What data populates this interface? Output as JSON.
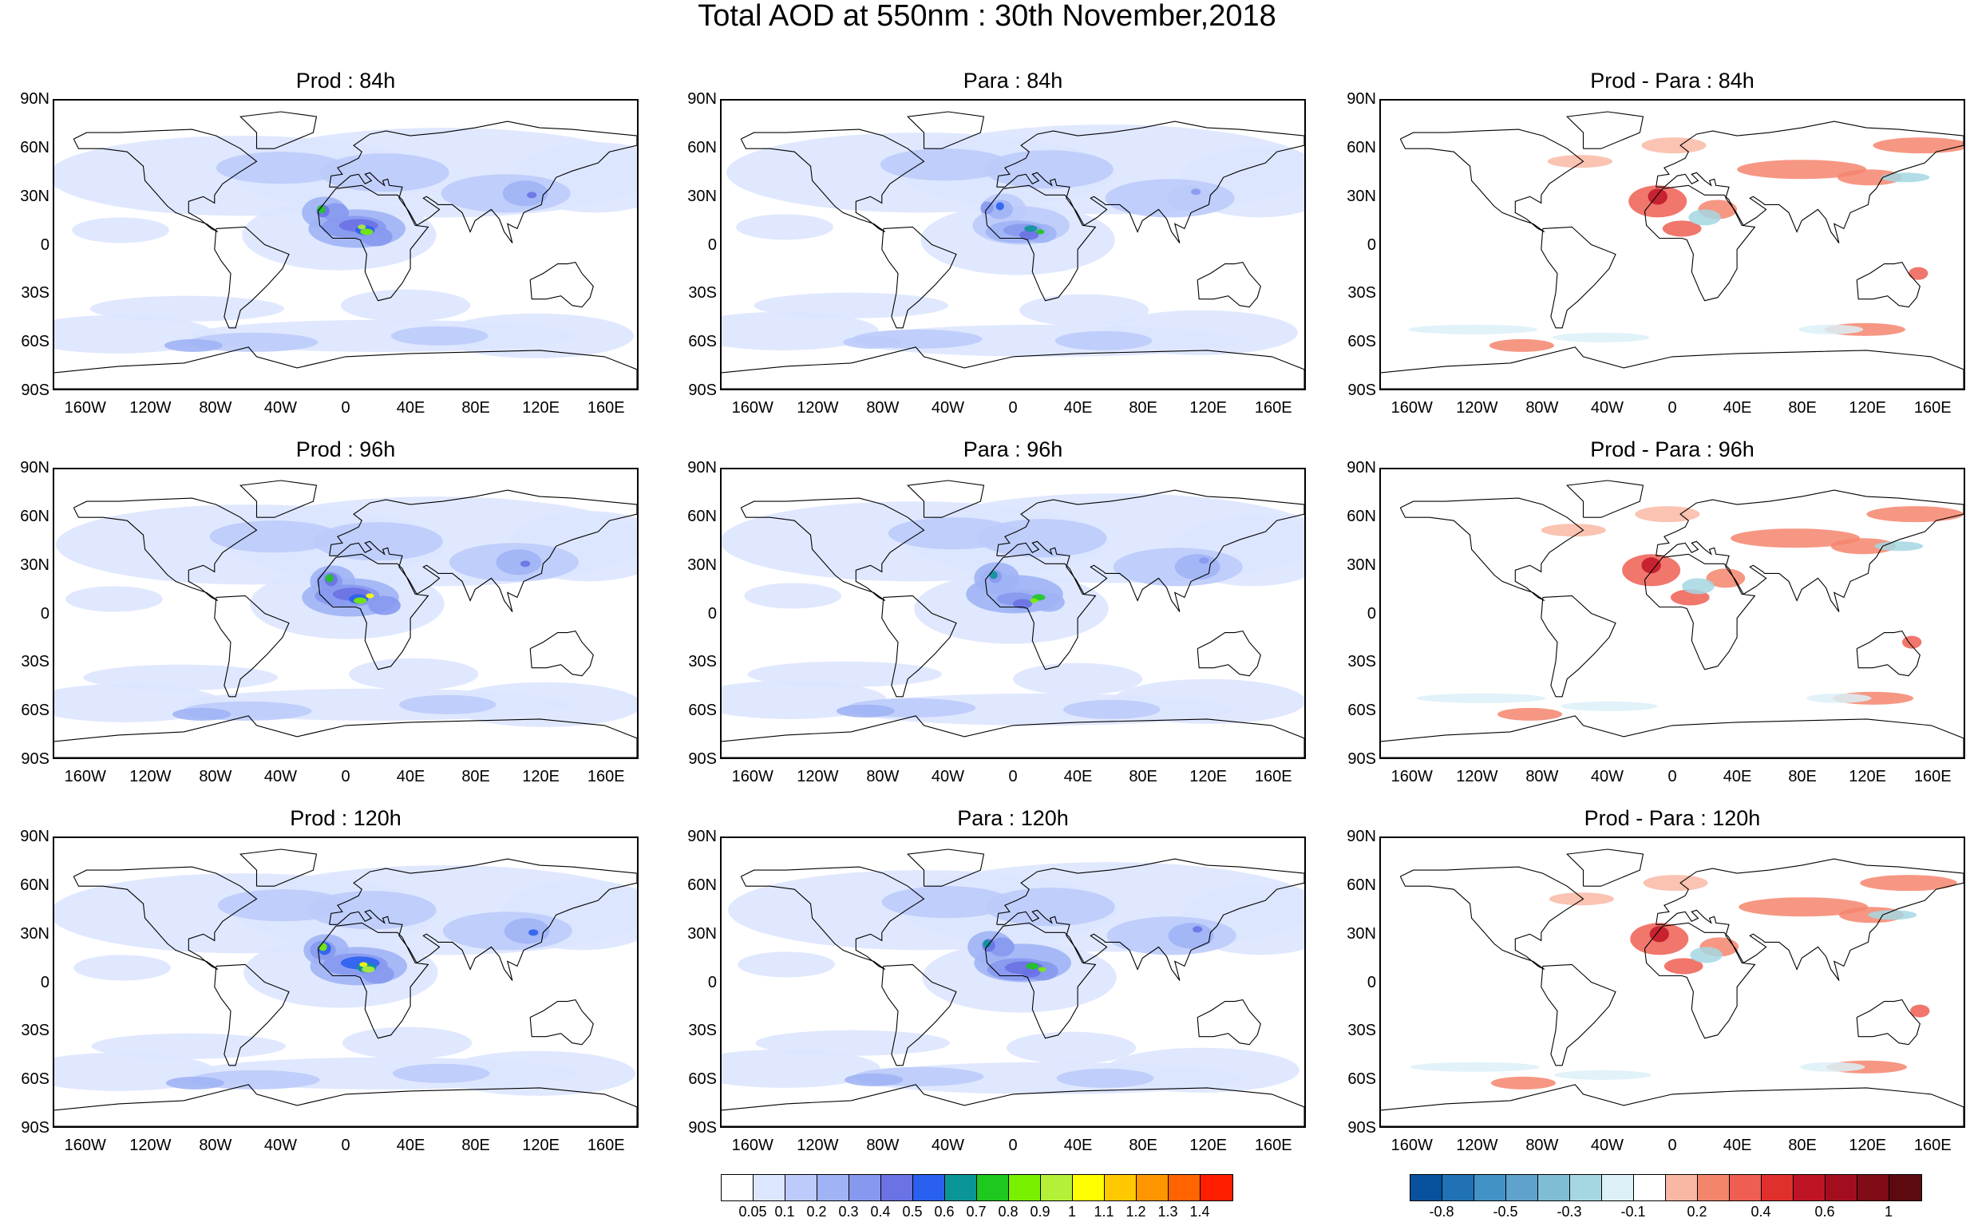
{
  "title": "Total AOD at 550nm : 30th November,2018",
  "lat_labels": [
    "90N",
    "60N",
    "30N",
    "0",
    "30S",
    "60S",
    "90S"
  ],
  "lon_labels": [
    "160W",
    "120W",
    "80W",
    "40W",
    "0",
    "40E",
    "80E",
    "120E",
    "160E"
  ],
  "panels": [
    {
      "title": "Prod : 84h",
      "kind": "aod",
      "intensity": 1.0
    },
    {
      "title": "Para : 84h",
      "kind": "aod",
      "intensity": 0.8
    },
    {
      "title": "Prod - Para : 84h",
      "kind": "diff"
    },
    {
      "title": "Prod : 96h",
      "kind": "aod",
      "intensity": 1.05
    },
    {
      "title": "Para : 96h",
      "kind": "aod",
      "intensity": 0.85
    },
    {
      "title": "Prod - Para : 96h",
      "kind": "diff"
    },
    {
      "title": "Prod : 120h",
      "kind": "aod",
      "intensity": 1.1
    },
    {
      "title": "Para : 120h",
      "kind": "aod",
      "intensity": 0.9
    },
    {
      "title": "Prod - Para : 120h",
      "kind": "diff"
    }
  ],
  "aod_colorbar": {
    "colors": [
      "#ffffff",
      "#dde6ff",
      "#bccbfb",
      "#a0b4f5",
      "#8799ef",
      "#6a72e4",
      "#2a60ef",
      "#0a9696",
      "#1ec81e",
      "#78f000",
      "#b4f038",
      "#ffff00",
      "#ffc800",
      "#ff9600",
      "#ff6400",
      "#ff1e00"
    ],
    "labels": [
      "0.05",
      "0.1",
      "0.2",
      "0.3",
      "0.4",
      "0.5",
      "0.6",
      "0.7",
      "0.8",
      "0.9",
      "1",
      "1.1",
      "1.2",
      "1.3",
      "1.4"
    ]
  },
  "diff_colorbar": {
    "colors": [
      "#08519c",
      "#2171b5",
      "#4292c6",
      "#5fa2cc",
      "#7fbdd4",
      "#a5d7e3",
      "#dcf0f8",
      "#ffffff",
      "#f9b8a4",
      "#f4856d",
      "#ee5e52",
      "#e0302e",
      "#bf1426",
      "#a20e1e",
      "#7f0c17",
      "#5c0a0f"
    ],
    "labels": [
      "-0.8",
      "-0.5",
      "-0.3",
      "-0.1",
      "0.2",
      "0.4",
      "0.6",
      "1"
    ],
    "label_positions": [
      1,
      3,
      5,
      7,
      9,
      11,
      13,
      15
    ]
  }
}
